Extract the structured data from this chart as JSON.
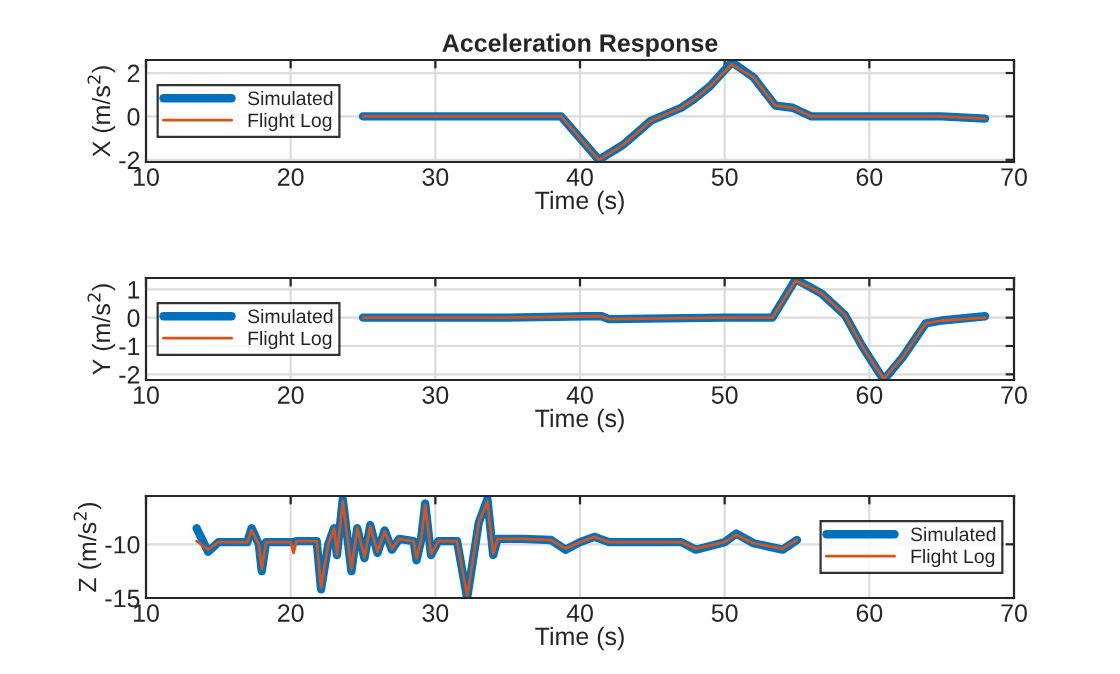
{
  "chart_data": [
    {
      "type": "line",
      "title": "Acceleration Response",
      "xlabel": "Time (s)",
      "ylabel": "X (m/s$^{2}$)",
      "xlim": [
        10,
        70
      ],
      "xticks": [
        10,
        20,
        30,
        40,
        50,
        60,
        70
      ],
      "ylim": [
        -2.1,
        2.6
      ],
      "yticks": [
        -2,
        0,
        2
      ],
      "grid": true,
      "legend": "left",
      "series": [
        {
          "name": "Simulated",
          "color": "#0072bd",
          "x": [
            25,
            30,
            35,
            38.7,
            41.3,
            43,
            44.9,
            47,
            47.9,
            49,
            50.5,
            52,
            53.5,
            54.7,
            56,
            60,
            65,
            68
          ],
          "values": [
            0,
            0,
            0,
            0,
            -2.0,
            -1.3,
            -0.2,
            0.4,
            0.8,
            1.4,
            2.5,
            1.8,
            0.5,
            0.4,
            0,
            0,
            0,
            -0.1
          ]
        },
        {
          "name": "Flight Log",
          "color": "#d95319",
          "x": [
            25,
            30,
            35,
            38.7,
            41.3,
            43,
            44.9,
            47,
            47.9,
            49,
            50.5,
            52,
            53.5,
            54.7,
            56,
            60,
            65,
            68
          ],
          "values": [
            0,
            0,
            0,
            0,
            -2.0,
            -1.3,
            -0.2,
            0.4,
            0.8,
            1.4,
            2.4,
            1.8,
            0.5,
            0.4,
            0,
            0,
            0,
            -0.1
          ]
        }
      ]
    },
    {
      "type": "line",
      "xlabel": "Time (s)",
      "ylabel": "Y (m/s$^{2}$)",
      "xlim": [
        10,
        70
      ],
      "xticks": [
        10,
        20,
        30,
        40,
        50,
        60,
        70
      ],
      "ylim": [
        -2.2,
        1.4
      ],
      "yticks": [
        -2,
        -1,
        0,
        1
      ],
      "grid": true,
      "legend": "left",
      "series": [
        {
          "name": "Simulated",
          "color": "#0072bd",
          "x": [
            25,
            35,
            40.5,
            41.5,
            42,
            50,
            53.3,
            54.9,
            56,
            56.7,
            58.3,
            59.5,
            60.5,
            61.0,
            62.3,
            63.9,
            65,
            68
          ],
          "values": [
            0,
            0,
            0.05,
            0.05,
            -0.05,
            0,
            0,
            1.35,
            1.05,
            0.85,
            0.1,
            -1,
            -1.8,
            -2.2,
            -1.4,
            -0.2,
            -0.1,
            0.05
          ]
        },
        {
          "name": "Flight Log",
          "color": "#d95319",
          "x": [
            25,
            35,
            40.5,
            41.5,
            42,
            50,
            53.3,
            54.9,
            56,
            56.7,
            58.3,
            59.5,
            60.5,
            61.0,
            62.3,
            63.9,
            65,
            68
          ],
          "values": [
            0,
            0,
            0.05,
            0.05,
            -0.05,
            0,
            0,
            1.3,
            1.05,
            0.85,
            0.1,
            -1,
            -1.8,
            -2.15,
            -1.4,
            -0.2,
            -0.1,
            0
          ]
        }
      ]
    },
    {
      "type": "line",
      "xlabel": "Time (s)",
      "ylabel": "Z (m/s$^{2}$)",
      "xlim": [
        10,
        70
      ],
      "xticks": [
        10,
        20,
        30,
        40,
        50,
        60,
        70
      ],
      "ylim": [
        -15,
        -5.5
      ],
      "yticks": [
        -15,
        -10
      ],
      "grid": true,
      "legend": "right",
      "series": [
        {
          "name": "Simulated",
          "color": "#0072bd",
          "x": [
            13.5,
            14.3,
            15,
            17,
            17.3,
            17.8,
            18.0,
            18.3,
            20,
            20.2,
            20.4,
            21.8,
            22.1,
            22.6,
            23,
            23.2,
            23.6,
            24.2,
            24.6,
            25.1,
            25.5,
            26,
            26.5,
            27,
            27.5,
            28.5,
            28.7,
            29,
            29.3,
            29.7,
            30.2,
            31.5,
            32.2,
            33,
            33.6,
            34,
            34.3,
            36,
            38,
            39,
            40,
            41,
            42,
            47,
            48,
            50,
            50.8,
            52,
            54,
            55
          ],
          "values": [
            -8.5,
            -10.7,
            -9.8,
            -9.8,
            -8.5,
            -10,
            -12.5,
            -9.8,
            -9.8,
            -9.8,
            -9.7,
            -9.7,
            -14.2,
            -10,
            -8.5,
            -11,
            -5.8,
            -12.5,
            -8.5,
            -11.3,
            -8.2,
            -10.8,
            -8.7,
            -10.5,
            -9.5,
            -9.7,
            -11.5,
            -9.7,
            -6.2,
            -11,
            -9.7,
            -9.7,
            -15,
            -8,
            -5.8,
            -11,
            -9.5,
            -9.5,
            -9.6,
            -10.5,
            -9.8,
            -9.3,
            -9.8,
            -9.8,
            -10.5,
            -9.8,
            -9.0,
            -9.9,
            -10.5,
            -9.6
          ]
        },
        {
          "name": "Flight Log",
          "color": "#d95319",
          "x": [
            13.5,
            14.3,
            15,
            17,
            17.3,
            17.8,
            18.0,
            18.3,
            20,
            20.2,
            20.4,
            21.8,
            22.1,
            22.6,
            23,
            23.2,
            23.6,
            24.2,
            24.6,
            25.1,
            25.5,
            26,
            26.5,
            27,
            27.5,
            28.5,
            28.7,
            29,
            29.3,
            29.7,
            30.2,
            31.5,
            32.2,
            33,
            33.6,
            34,
            34.3,
            36,
            38,
            39,
            40,
            41,
            42,
            47,
            48,
            50,
            50.8,
            52,
            54,
            55
          ],
          "values": [
            -9.7,
            -10.5,
            -9.8,
            -9.8,
            -8.7,
            -10,
            -12.3,
            -9.8,
            -9.8,
            -10.8,
            -9.7,
            -9.7,
            -14,
            -10,
            -8.5,
            -11,
            -6,
            -12.3,
            -8.5,
            -11.2,
            -8.3,
            -10.7,
            -8.8,
            -10.4,
            -9.5,
            -9.7,
            -11.3,
            -9.7,
            -6.3,
            -10.9,
            -9.7,
            -9.7,
            -14.8,
            -8,
            -6,
            -10.9,
            -9.5,
            -9.5,
            -9.6,
            -10.4,
            -9.8,
            -9.3,
            -9.8,
            -9.8,
            -10.4,
            -9.8,
            -9.1,
            -9.9,
            -10.4,
            -9.6
          ]
        }
      ]
    }
  ]
}
